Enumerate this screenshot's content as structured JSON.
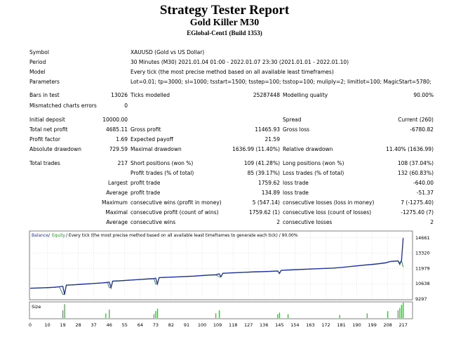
{
  "report": {
    "title": "Strategy Tester Report",
    "expert": "Gold Killer M30",
    "server": "EGlobal-Cent1 (Build 1353)"
  },
  "settings": [
    {
      "label": "Symbol",
      "value": "XAUUSD (Gold vs US Dollar)"
    },
    {
      "label": "Period",
      "value": "30 Minutes (M30) 2021.01.04 01:00 - 2022.01.07 23:30 (2021.01.01 - 2022.01.10)"
    },
    {
      "label": "Model",
      "value": "Every tick (the most precise method based on all available least timeframes)"
    },
    {
      "label": "Parameters",
      "value": "Lot=0.01; tp=3000; sl=1000; tsstart=1500; tsstep=100; tsstop=100; muliply=2; limitlot=100; MagicStart=5780;"
    }
  ],
  "bars": {
    "bars_label": "Bars in test",
    "bars_value": "13026",
    "ticks_label": "Ticks modelled",
    "ticks_value": "25287448",
    "quality_label": "Modelling quality",
    "quality_value": "90.00%",
    "mismatch_label": "Mismatched charts errors",
    "mismatch_value": "0"
  },
  "stats": {
    "initial_deposit_label": "Initial deposit",
    "initial_deposit": "10000.00",
    "spread_label": "Spread",
    "spread": "Current (260)",
    "net_profit_label": "Total net profit",
    "net_profit": "4685.11",
    "gross_profit_label": "Gross profit",
    "gross_profit": "11465.93",
    "gross_loss_label": "Gross loss",
    "gross_loss": "-6780.82",
    "profit_factor_label": "Profit factor",
    "profit_factor": "1.69",
    "expected_payoff_label": "Expected payoff",
    "expected_payoff": "21.59",
    "abs_dd_label": "Absolute drawdown",
    "abs_dd": "729.59",
    "max_dd_label": "Maximal drawdown",
    "max_dd": "1636.99 (11.40%)",
    "rel_dd_label": "Relative drawdown",
    "rel_dd": "11.40% (1636.99)",
    "total_trades_label": "Total trades",
    "total_trades": "217",
    "short_label": "Short positions (won %)",
    "short": "109 (41.28%)",
    "long_label": "Long positions (won %)",
    "long": "108 (37.04%)",
    "profit_trades_label": "Profit trades (% of total)",
    "profit_trades": "85 (39.17%)",
    "loss_trades_label": "Loss trades (% of total)",
    "loss_trades": "132 (60.83%)",
    "largest_label": "Largest",
    "largest_profit_label": "profit trade",
    "largest_profit": "1759.62",
    "largest_loss_label": "loss trade",
    "largest_loss": "-640.00",
    "average_label": "Average",
    "average_profit_label": "profit trade",
    "average_profit": "134.89",
    "average_loss_label": "loss trade",
    "average_loss": "-51.37",
    "maximum_label": "Maximum",
    "max_cons_wins_label": "consecutive wins (profit in money)",
    "max_cons_wins": "5 (547.14)",
    "max_cons_losses_label": "consecutive losses (loss in money)",
    "max_cons_losses": "7 (-1275.40)",
    "maximal_label": "Maximal",
    "maximal_cons_profit_label": "consecutive profit (count of wins)",
    "maximal_cons_profit": "1759.62 (1)",
    "maximal_cons_loss_label": "consecutive loss (count of losses)",
    "maximal_cons_loss": "-1275.40 (7)",
    "average2_label": "Average",
    "avg_cons_wins_label": "consecutive wins",
    "avg_cons_wins": "2",
    "avg_cons_losses_label": "consecutive losses",
    "avg_cons_losses": "2"
  },
  "chart_data": {
    "type": "line",
    "legend": {
      "balance": "Balance",
      "sep": " / ",
      "equity": "Equity",
      "desc": " / Every tick (the most precise method based on all available least timeframes to generate each tick) / 90.00%"
    },
    "colors": {
      "balance": "#1f2fa0",
      "equity": "#3a8a3a",
      "grid": "#c8c8c8",
      "size": "#3aa83a"
    },
    "ylim": [
      9297,
      15200
    ],
    "y_ticks": [
      14661,
      13320,
      11979,
      10638,
      9297
    ],
    "x_ticks": [
      0,
      10,
      19,
      28,
      37,
      46,
      55,
      64,
      73,
      82,
      91,
      100,
      109,
      118,
      127,
      136,
      145,
      154,
      163,
      172,
      181,
      190,
      199,
      208,
      217
    ],
    "xlim": [
      0,
      222
    ],
    "balance": [
      [
        0,
        10250
      ],
      [
        6,
        10280
      ],
      [
        10,
        10300
      ],
      [
        14,
        10330
      ],
      [
        17,
        10380
      ],
      [
        19,
        10420
      ],
      [
        20,
        9700
      ],
      [
        21,
        10520
      ],
      [
        26,
        10560
      ],
      [
        30,
        10600
      ],
      [
        34,
        10640
      ],
      [
        38,
        10680
      ],
      [
        42,
        10720
      ],
      [
        45,
        10760
      ],
      [
        46,
        10800
      ],
      [
        47,
        10300
      ],
      [
        48,
        10870
      ],
      [
        52,
        10900
      ],
      [
        56,
        10940
      ],
      [
        60,
        10980
      ],
      [
        64,
        11020
      ],
      [
        68,
        11060
      ],
      [
        72,
        11090
      ],
      [
        73,
        11130
      ],
      [
        74,
        10620
      ],
      [
        75,
        11180
      ],
      [
        80,
        11210
      ],
      [
        85,
        11240
      ],
      [
        90,
        11280
      ],
      [
        95,
        11310
      ],
      [
        100,
        11360
      ],
      [
        104,
        11400
      ],
      [
        108,
        11430
      ],
      [
        110,
        11510
      ],
      [
        111,
        11250
      ],
      [
        112,
        11560
      ],
      [
        118,
        11600
      ],
      [
        124,
        11640
      ],
      [
        130,
        11680
      ],
      [
        136,
        11710
      ],
      [
        140,
        11730
      ],
      [
        144,
        11760
      ],
      [
        145,
        11540
      ],
      [
        146,
        11820
      ],
      [
        152,
        11860
      ],
      [
        158,
        11900
      ],
      [
        164,
        11940
      ],
      [
        170,
        11980
      ],
      [
        176,
        12010
      ],
      [
        180,
        12060
      ],
      [
        184,
        12120
      ],
      [
        188,
        12180
      ],
      [
        192,
        12240
      ],
      [
        196,
        12300
      ],
      [
        200,
        12350
      ],
      [
        204,
        12420
      ],
      [
        207,
        12480
      ],
      [
        208,
        12530
      ],
      [
        210,
        12600
      ],
      [
        214,
        12640
      ],
      [
        215,
        12400
      ],
      [
        216,
        12680
      ],
      [
        217,
        14661
      ]
    ],
    "equity_dips": [
      [
        19,
        9700
      ],
      [
        46,
        10300
      ],
      [
        73,
        10620
      ],
      [
        110,
        11250
      ],
      [
        145,
        11540
      ],
      [
        215,
        12300
      ],
      [
        217,
        12100
      ]
    ],
    "size_label": "Size",
    "size_bars": [
      [
        19,
        0.5
      ],
      [
        20,
        0.9
      ],
      [
        44,
        0.3
      ],
      [
        46,
        0.55
      ],
      [
        72,
        0.25
      ],
      [
        73,
        0.45
      ],
      [
        74,
        0.6
      ],
      [
        108,
        0.3
      ],
      [
        110,
        0.5
      ],
      [
        144,
        0.25
      ],
      [
        145,
        0.35
      ],
      [
        150,
        0.25
      ],
      [
        180,
        0.2
      ],
      [
        196,
        0.3
      ],
      [
        208,
        0.45
      ],
      [
        214,
        0.5
      ],
      [
        215,
        0.65
      ],
      [
        216,
        0.85
      ],
      [
        217,
        1.0
      ]
    ]
  }
}
